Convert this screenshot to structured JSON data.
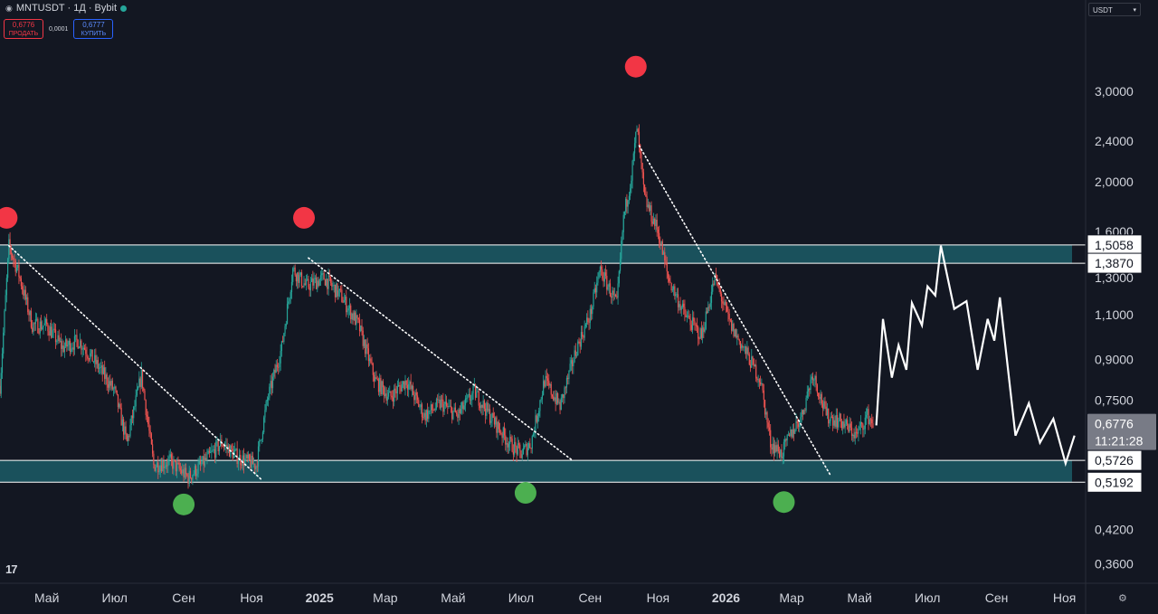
{
  "header": {
    "symbol": "MNTUSDT · 1Д · Bybit",
    "sell_price": "0,6776",
    "sell_label": "ПРОДАТЬ",
    "spread": "0,0001",
    "buy_price": "0,6777",
    "buy_label": "КУПИТЬ",
    "currency": "USDT",
    "status_color": "#26a69a"
  },
  "icons": {
    "logo": "tradingview-logo-icon",
    "settings": "settings-icon",
    "currency_dropdown": "chevron-down-icon"
  },
  "chart_data": {
    "type": "candlestick",
    "y_scale": "log",
    "ylim": [
      0.33,
      4.0
    ],
    "y_ticks": [
      {
        "value": 3.0,
        "label": "3,0000"
      },
      {
        "value": 2.4,
        "label": "2,4000"
      },
      {
        "value": 2.0,
        "label": "2,0000"
      },
      {
        "value": 1.6,
        "label": "1,6000"
      },
      {
        "value": 1.3,
        "label": "1,3000"
      },
      {
        "value": 1.1,
        "label": "1,1000"
      },
      {
        "value": 0.9,
        "label": "0,9000"
      },
      {
        "value": 0.75,
        "label": "0,7500"
      },
      {
        "value": 0.42,
        "label": "0,4200"
      },
      {
        "value": 0.36,
        "label": "0,3600"
      }
    ],
    "x_ticks": [
      {
        "date": "2024-05-01",
        "label": "Май",
        "bold": false
      },
      {
        "date": "2024-07-01",
        "label": "Июл",
        "bold": false
      },
      {
        "date": "2024-09-01",
        "label": "Сен",
        "bold": false
      },
      {
        "date": "2024-11-01",
        "label": "Ноя",
        "bold": false
      },
      {
        "date": "2025-01-01",
        "label": "2025",
        "bold": true
      },
      {
        "date": "2025-03-01",
        "label": "Мар",
        "bold": false
      },
      {
        "date": "2025-05-01",
        "label": "Май",
        "bold": false
      },
      {
        "date": "2025-07-01",
        "label": "Июл",
        "bold": false
      },
      {
        "date": "2025-09-01",
        "label": "Сен",
        "bold": false
      },
      {
        "date": "2025-11-01",
        "label": "Ноя",
        "bold": false
      },
      {
        "date": "2026-01-01",
        "label": "2026",
        "bold": true
      },
      {
        "date": "2026-03-01",
        "label": "Мар",
        "bold": false
      },
      {
        "date": "2026-05-01",
        "label": "Май",
        "bold": false
      },
      {
        "date": "2026-07-01",
        "label": "Июл",
        "bold": false
      },
      {
        "date": "2026-09-01",
        "label": "Сен",
        "bold": false
      },
      {
        "date": "2026-11-01",
        "label": "Ноя",
        "bold": false
      }
    ],
    "x_range": [
      "2024-03-20",
      "2026-11-20"
    ],
    "price_path": [
      [
        "2024-03-20",
        0.8
      ],
      [
        "2024-03-28",
        1.5
      ],
      [
        "2024-04-06",
        1.32
      ],
      [
        "2024-04-18",
        1.05
      ],
      [
        "2024-05-01",
        1.05
      ],
      [
        "2024-05-15",
        0.95
      ],
      [
        "2024-05-30",
        0.98
      ],
      [
        "2024-06-15",
        0.88
      ],
      [
        "2024-07-01",
        0.78
      ],
      [
        "2024-07-12",
        0.62
      ],
      [
        "2024-07-25",
        0.84
      ],
      [
        "2024-08-05",
        0.56
      ],
      [
        "2024-08-20",
        0.57
      ],
      [
        "2024-09-05",
        0.53
      ],
      [
        "2024-09-20",
        0.57
      ],
      [
        "2024-10-05",
        0.62
      ],
      [
        "2024-10-20",
        0.58
      ],
      [
        "2024-11-05",
        0.56
      ],
      [
        "2024-11-15",
        0.75
      ],
      [
        "2024-11-28",
        0.95
      ],
      [
        "2024-12-08",
        1.35
      ],
      [
        "2024-12-20",
        1.25
      ],
      [
        "2025-01-05",
        1.3
      ],
      [
        "2025-01-20",
        1.2
      ],
      [
        "2025-02-05",
        1.05
      ],
      [
        "2025-02-20",
        0.82
      ],
      [
        "2025-03-05",
        0.76
      ],
      [
        "2025-03-20",
        0.82
      ],
      [
        "2025-04-05",
        0.7
      ],
      [
        "2025-04-20",
        0.74
      ],
      [
        "2025-05-05",
        0.7
      ],
      [
        "2025-05-20",
        0.78
      ],
      [
        "2025-06-05",
        0.69
      ],
      [
        "2025-06-20",
        0.62
      ],
      [
        "2025-07-01",
        0.59
      ],
      [
        "2025-07-10",
        0.62
      ],
      [
        "2025-07-22",
        0.82
      ],
      [
        "2025-08-05",
        0.73
      ],
      [
        "2025-08-20",
        0.95
      ],
      [
        "2025-09-01",
        1.1
      ],
      [
        "2025-09-10",
        1.35
      ],
      [
        "2025-09-25",
        1.15
      ],
      [
        "2025-10-01",
        1.7
      ],
      [
        "2025-10-08",
        2.05
      ],
      [
        "2025-10-13",
        2.55
      ],
      [
        "2025-10-20",
        1.85
      ],
      [
        "2025-11-01",
        1.6
      ],
      [
        "2025-11-10",
        1.3
      ],
      [
        "2025-11-25",
        1.1
      ],
      [
        "2025-12-10",
        1.0
      ],
      [
        "2025-12-22",
        1.3
      ],
      [
        "2026-01-05",
        1.05
      ],
      [
        "2026-01-20",
        0.92
      ],
      [
        "2026-02-01",
        0.82
      ],
      [
        "2026-02-10",
        0.62
      ],
      [
        "2026-02-20",
        0.59
      ],
      [
        "2026-03-01",
        0.65
      ],
      [
        "2026-03-10",
        0.7
      ],
      [
        "2026-03-20",
        0.85
      ],
      [
        "2026-04-01",
        0.7
      ],
      [
        "2026-04-15",
        0.68
      ],
      [
        "2026-04-28",
        0.64
      ],
      [
        "2026-05-08",
        0.7
      ],
      [
        "2026-05-13",
        0.6776
      ]
    ],
    "zones": [
      {
        "low": 1.387,
        "high": 1.5058,
        "color": "#1c5c66"
      },
      {
        "low": 0.5192,
        "high": 0.5726,
        "color": "#1c5c66"
      }
    ],
    "trendlines": [
      {
        "from": [
          "2024-03-28",
          1.5
        ],
        "to": [
          "2024-11-10",
          0.525
        ]
      },
      {
        "from": [
          "2024-12-22",
          1.42
        ],
        "to": [
          "2025-08-15",
          0.575
        ]
      },
      {
        "from": [
          "2025-10-15",
          2.35
        ],
        "to": [
          "2026-04-05",
          0.535
        ]
      }
    ],
    "projection": [
      [
        "2026-05-16",
        0.67
      ],
      [
        "2026-05-22",
        1.08
      ],
      [
        "2026-05-30",
        0.83
      ],
      [
        "2026-06-05",
        0.96
      ],
      [
        "2026-06-12",
        0.86
      ],
      [
        "2026-06-17",
        1.16
      ],
      [
        "2026-06-26",
        1.05
      ],
      [
        "2026-07-01",
        1.25
      ],
      [
        "2026-07-08",
        1.2
      ],
      [
        "2026-07-13",
        1.5
      ],
      [
        "2026-07-25",
        1.13
      ],
      [
        "2026-08-05",
        1.17
      ],
      [
        "2026-08-15",
        0.86
      ],
      [
        "2026-08-24",
        1.08
      ],
      [
        "2026-08-30",
        0.98
      ],
      [
        "2026-09-04",
        1.19
      ],
      [
        "2026-09-18",
        0.64
      ],
      [
        "2026-09-30",
        0.74
      ],
      [
        "2026-10-10",
        0.62
      ],
      [
        "2026-10-22",
        0.69
      ],
      [
        "2026-11-02",
        0.565
      ],
      [
        "2026-11-10",
        0.64
      ]
    ],
    "tops": [
      {
        "date": "2024-03-26",
        "price": 1.7
      },
      {
        "date": "2024-12-18",
        "price": 1.7
      },
      {
        "date": "2025-10-12",
        "price": 3.35
      }
    ],
    "bottoms": [
      {
        "date": "2024-09-01",
        "price": 0.47
      },
      {
        "date": "2025-07-05",
        "price": 0.495
      },
      {
        "date": "2026-02-22",
        "price": 0.475
      }
    ],
    "price_labels": [
      {
        "value": 1.5058,
        "label": "1,5058",
        "style": "white"
      },
      {
        "value": 1.387,
        "label": "1,3870",
        "style": "white"
      },
      {
        "value": 0.6776,
        "label": "0,6776",
        "style": "current"
      },
      {
        "value": 0.5726,
        "label": "0,5726",
        "style": "white"
      },
      {
        "value": 0.5192,
        "label": "0,5192",
        "style": "white"
      }
    ],
    "countdown": "11:21:28",
    "colors": {
      "up": "#26a69a",
      "down": "#ef5350",
      "top_marker": "#f23645",
      "bottom_marker": "#4caf50",
      "projection": "#ffffff",
      "trendline": "#ffffff",
      "zone": "#1c5c66"
    }
  }
}
